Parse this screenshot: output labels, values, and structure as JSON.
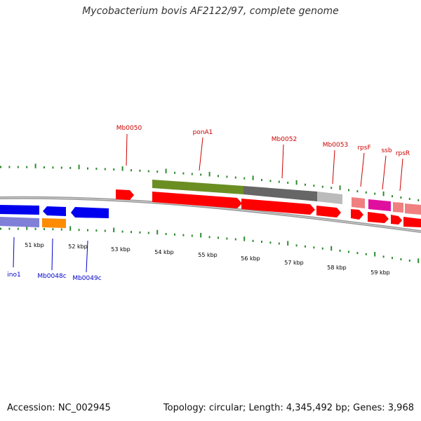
{
  "title": "Mycobacterium bovis AF2122/97, complete genome",
  "footer": {
    "accession": "Accession: NC_002945",
    "stats": "Topology: circular; Length: 4,345,492 bp; Genes: 3,968"
  },
  "colors": {
    "backbone": "#8a8a8a",
    "tick": "#2e8b2e",
    "forward_label": "#cc0000",
    "reverse_label": "#0000cc"
  },
  "ruler": {
    "kbp_labels": [
      "51 kbp",
      "52 kbp",
      "53 kbp",
      "54 kbp",
      "55 kbp",
      "56 kbp",
      "57 kbp",
      "58 kbp",
      "59 kbp"
    ]
  },
  "forward_genes": [
    {
      "label": "Mb0050",
      "color": "#ff0000"
    },
    {
      "label": "ponA1",
      "color": "#ff0000"
    },
    {
      "label": "Mb0052",
      "color": "#ff0000"
    },
    {
      "label": "Mb0053",
      "color": "#ff0000"
    },
    {
      "label": "rpsF",
      "color": "#ff0000"
    },
    {
      "label": "ssb",
      "color": "#ff0000"
    },
    {
      "label": "rpsR",
      "color": "#ff0000"
    }
  ],
  "reverse_genes": [
    {
      "label": "ino1",
      "color": "#0000ee"
    },
    {
      "label": "Mb0048c",
      "color": "#0000ee"
    },
    {
      "label": "Mb0049c",
      "color": "#0000ee"
    }
  ]
}
